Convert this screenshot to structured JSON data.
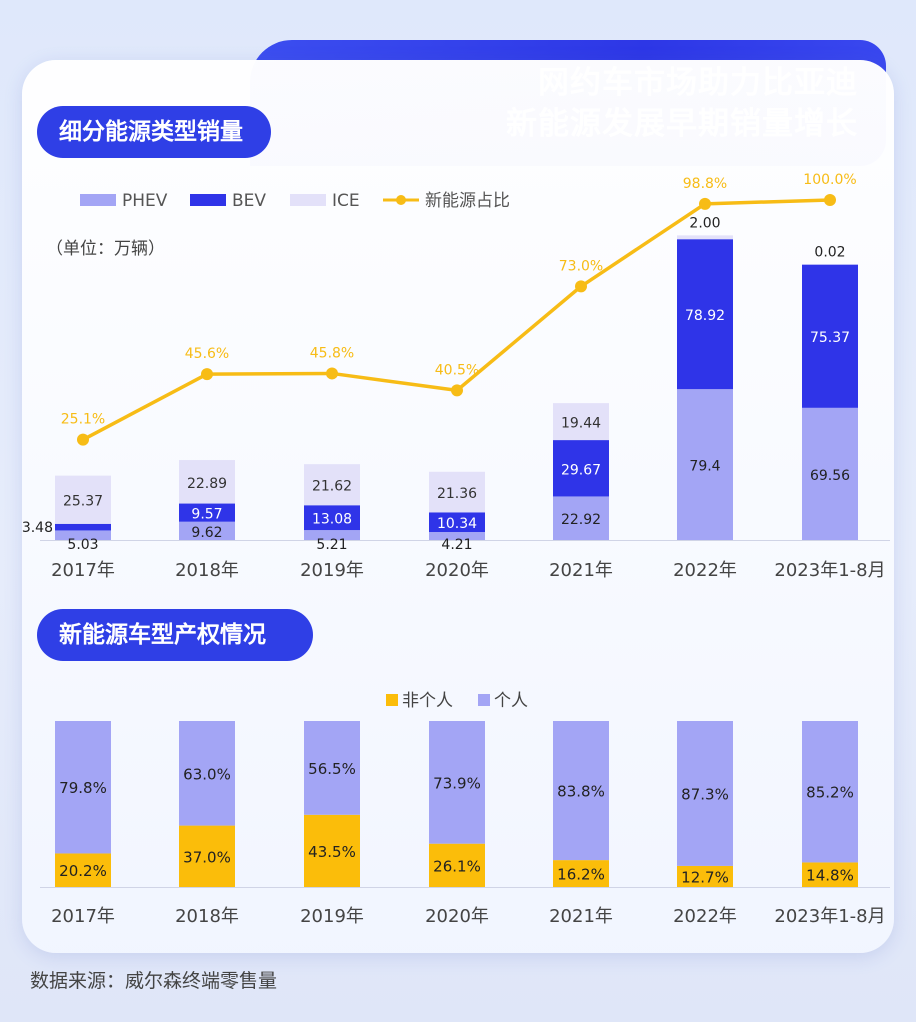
{
  "header": {
    "title_line1": "网约车市场助力比亚迪",
    "title_line2": "新能源发展早期销量增长"
  },
  "source": "数据来源：威尔森终端零售量",
  "colors": {
    "phev": "#a3a5f5",
    "bev": "#2f34e8",
    "ice": "#e3e1f9",
    "line": "#f7bc16",
    "non_personal": "#fbbd0a",
    "personal": "#a3a5f5",
    "accent": "#2f3fe6"
  },
  "chart_data": [
    {
      "type": "bar",
      "title": "细分能源类型销量",
      "unit_label": "（单位：万辆）",
      "stacked": true,
      "categories": [
        "2017年",
        "2018年",
        "2019年",
        "2020年",
        "2021年",
        "2022年",
        "2023年1-8月"
      ],
      "series": [
        {
          "name": "PHEV",
          "values": [
            5.03,
            9.62,
            5.21,
            4.21,
            22.92,
            79.4,
            69.56
          ],
          "labels": [
            "5.03",
            "9.62",
            "5.21",
            "4.21",
            "22.92",
            "79.4",
            "69.56"
          ]
        },
        {
          "name": "BEV",
          "values": [
            3.48,
            9.57,
            13.08,
            10.34,
            29.67,
            78.92,
            75.37
          ],
          "labels": [
            "3.48",
            "9.57",
            "13.08",
            "10.34",
            "29.67",
            "78.92",
            "75.37"
          ]
        },
        {
          "name": "ICE",
          "values": [
            25.37,
            22.89,
            21.62,
            21.36,
            19.44,
            2.0,
            0.02
          ],
          "labels": [
            "25.37",
            "22.89",
            "21.62",
            "21.36",
            "19.44",
            "2.00",
            "0.02"
          ]
        }
      ],
      "line_series": {
        "name": "新能源占比",
        "values": [
          25.1,
          45.6,
          45.8,
          40.5,
          73.0,
          98.8,
          100.0
        ],
        "labels": [
          "25.1%",
          "45.6%",
          "45.8%",
          "40.5%",
          "73.0%",
          "98.8%",
          "100.0%"
        ]
      },
      "legend": [
        "PHEV",
        "BEV",
        "ICE",
        "新能源占比"
      ],
      "legend_position": "top-left",
      "grid": false
    },
    {
      "type": "bar",
      "title": "新能源车型产权情况",
      "stacked": true,
      "percent": true,
      "categories": [
        "2017年",
        "2018年",
        "2019年",
        "2020年",
        "2021年",
        "2022年",
        "2023年1-8月"
      ],
      "series": [
        {
          "name": "非个人",
          "values": [
            20.2,
            37.0,
            43.5,
            26.1,
            16.2,
            12.7,
            14.8
          ],
          "labels": [
            "20.2%",
            "37.0%",
            "43.5%",
            "26.1%",
            "16.2%",
            "12.7%",
            "14.8%"
          ]
        },
        {
          "name": "个人",
          "values": [
            79.8,
            63.0,
            56.5,
            73.9,
            83.8,
            87.3,
            85.2
          ],
          "labels": [
            "79.8%",
            "63.0%",
            "56.5%",
            "73.9%",
            "83.8%",
            "87.3%",
            "85.2%"
          ]
        }
      ],
      "legend": [
        "非个人",
        "个人"
      ],
      "legend_position": "top-center",
      "grid": false
    }
  ]
}
